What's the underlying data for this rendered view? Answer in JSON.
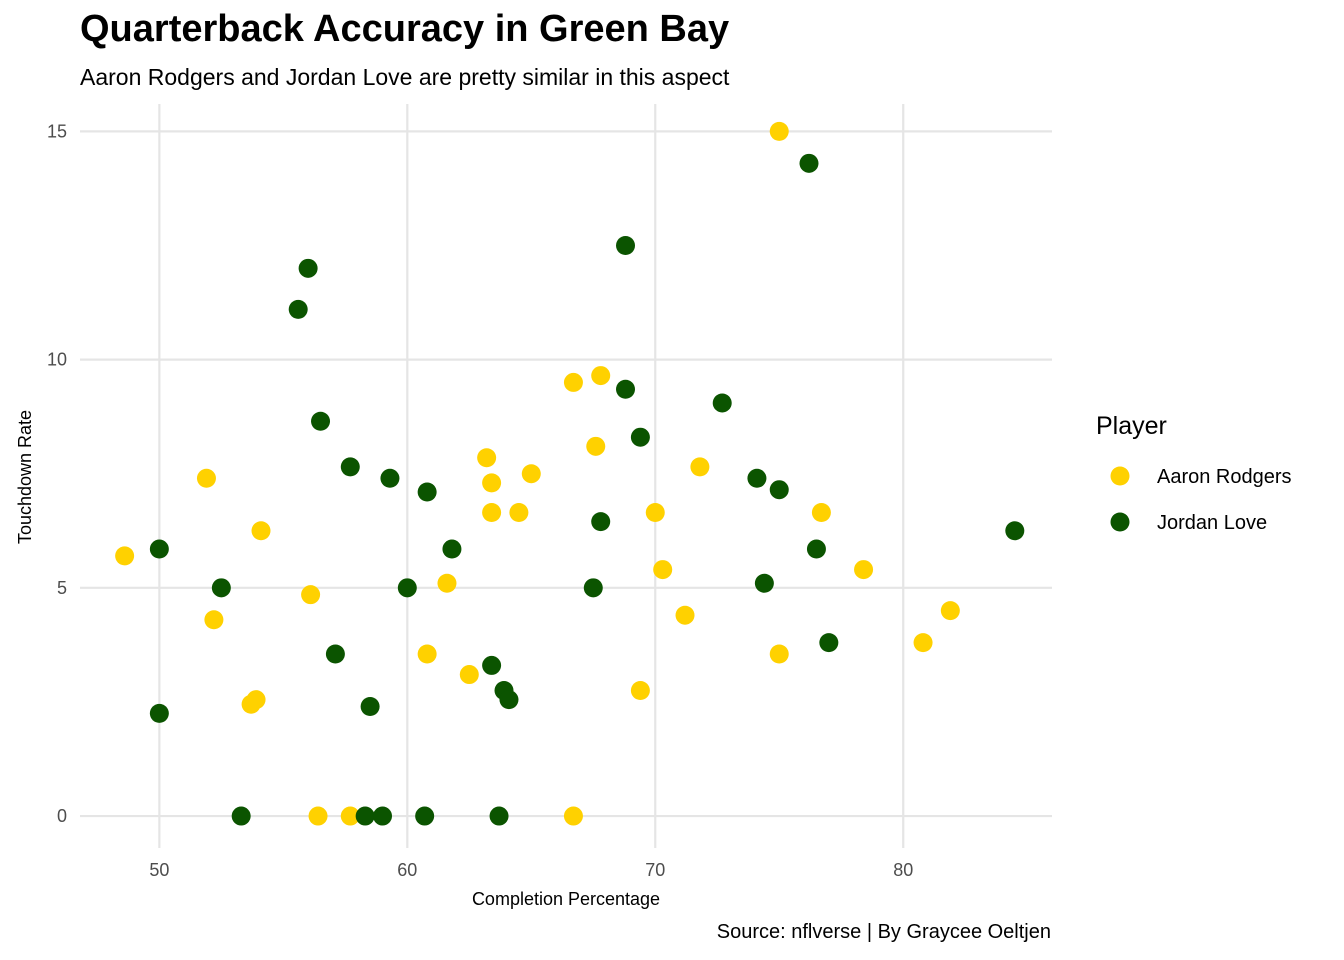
{
  "title": "Quarterback Accuracy in Green Bay",
  "subtitle": "Aaron Rodgers and Jordan Love are pretty similar in this aspect",
  "caption": "Source: nflverse | By Graycee Oeltjen",
  "chart_data": {
    "type": "scatter",
    "xlabel": "Completion Percentage",
    "ylabel": "Touchdown Rate",
    "xlim": [
      46.8,
      86.0
    ],
    "ylim": [
      -0.7,
      15.6
    ],
    "x_ticks": [
      50,
      60,
      70,
      80
    ],
    "y_ticks": [
      0,
      5,
      10,
      15
    ],
    "grid": true,
    "legend": {
      "title": "Player",
      "position": "right"
    },
    "series": [
      {
        "name": "Aaron Rodgers",
        "color": "#FFD100",
        "points": [
          [
            75.0,
            15.0
          ],
          [
            48.6,
            5.7
          ],
          [
            51.9,
            7.4
          ],
          [
            52.2,
            4.3
          ],
          [
            54.1,
            6.25
          ],
          [
            53.7,
            2.45
          ],
          [
            53.9,
            2.55
          ],
          [
            56.1,
            4.85
          ],
          [
            56.4,
            0.0
          ],
          [
            57.7,
            0.0
          ],
          [
            60.8,
            3.55
          ],
          [
            61.6,
            5.1
          ],
          [
            62.5,
            3.1
          ],
          [
            63.2,
            7.85
          ],
          [
            63.4,
            7.3
          ],
          [
            63.4,
            6.65
          ],
          [
            64.5,
            6.65
          ],
          [
            65.0,
            7.5
          ],
          [
            66.7,
            9.5
          ],
          [
            66.7,
            0.0
          ],
          [
            67.6,
            8.1
          ],
          [
            67.8,
            9.65
          ],
          [
            69.4,
            2.75
          ],
          [
            70.0,
            6.65
          ],
          [
            70.3,
            5.4
          ],
          [
            71.2,
            4.4
          ],
          [
            71.8,
            7.65
          ],
          [
            75.0,
            3.55
          ],
          [
            76.7,
            6.65
          ],
          [
            78.4,
            5.4
          ],
          [
            80.8,
            3.8
          ],
          [
            81.9,
            4.5
          ]
        ]
      },
      {
        "name": "Jordan Love",
        "color": "#0B5400",
        "points": [
          [
            76.2,
            14.3
          ],
          [
            68.8,
            12.5
          ],
          [
            56.0,
            12.0
          ],
          [
            55.6,
            11.1
          ],
          [
            56.5,
            8.65
          ],
          [
            57.7,
            7.65
          ],
          [
            59.3,
            7.4
          ],
          [
            60.8,
            7.1
          ],
          [
            61.8,
            5.85
          ],
          [
            60.0,
            5.0
          ],
          [
            57.1,
            3.55
          ],
          [
            58.5,
            2.4
          ],
          [
            50.0,
            5.85
          ],
          [
            52.5,
            5.0
          ],
          [
            50.0,
            2.25
          ],
          [
            53.3,
            0.0
          ],
          [
            58.3,
            0.0
          ],
          [
            59.0,
            0.0
          ],
          [
            60.7,
            0.0
          ],
          [
            63.7,
            0.0
          ],
          [
            63.4,
            3.3
          ],
          [
            63.9,
            2.75
          ],
          [
            64.1,
            2.55
          ],
          [
            67.5,
            5.0
          ],
          [
            67.8,
            6.45
          ],
          [
            68.8,
            9.35
          ],
          [
            69.4,
            8.3
          ],
          [
            72.7,
            9.05
          ],
          [
            74.1,
            7.4
          ],
          [
            75.0,
            7.15
          ],
          [
            74.4,
            5.1
          ],
          [
            76.5,
            5.85
          ],
          [
            77.0,
            3.8
          ],
          [
            84.5,
            6.25
          ]
        ]
      }
    ]
  }
}
